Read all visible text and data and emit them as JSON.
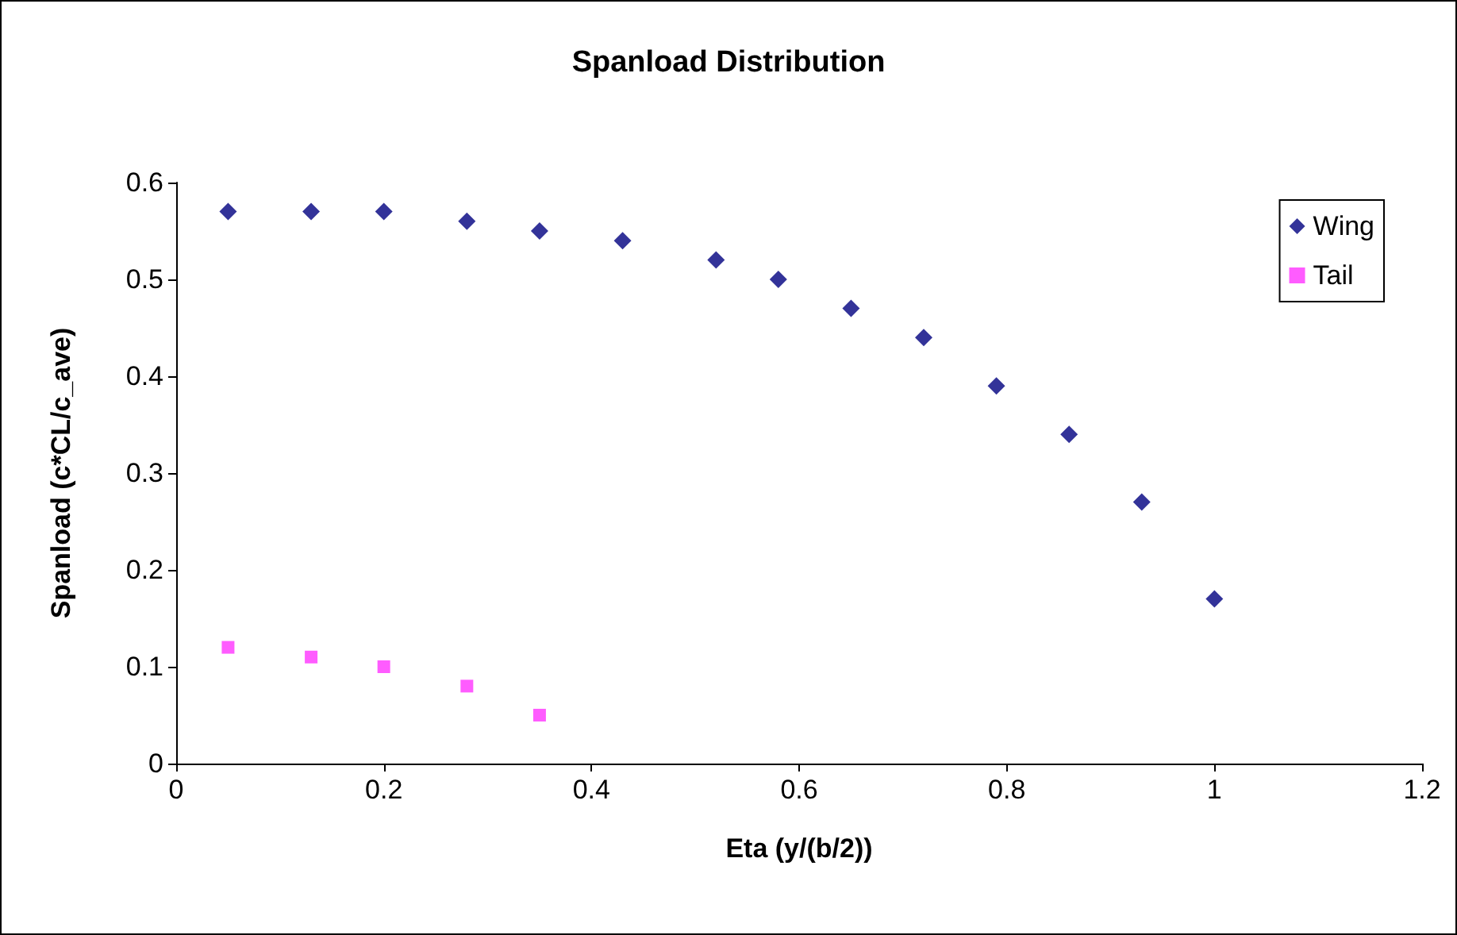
{
  "chart_data": {
    "type": "scatter",
    "title": "Spanload Distribution",
    "xlabel": "Eta (y/(b/2))",
    "ylabel": "Spanload (c*CL/c_ave)",
    "series": [
      {
        "name": "Wing",
        "color": "#000080",
        "marker": "diamond",
        "x": [
          0.05,
          0.13,
          0.2,
          0.28,
          0.35,
          0.43,
          0.52,
          0.58,
          0.65,
          0.72,
          0.79,
          0.86,
          0.93,
          1.0
        ],
        "values": [
          0.57,
          0.57,
          0.57,
          0.56,
          0.55,
          0.54,
          0.52,
          0.5,
          0.47,
          0.44,
          0.39,
          0.34,
          0.27,
          0.17
        ]
      },
      {
        "name": "Tail",
        "color": "#ff33ff",
        "marker": "square",
        "x": [
          0.05,
          0.13,
          0.2,
          0.28,
          0.35
        ],
        "values": [
          0.12,
          0.11,
          0.1,
          0.08,
          0.05
        ]
      }
    ],
    "xlim": [
      0,
      1.2
    ],
    "xticks": [
      0,
      0.2,
      0.4,
      0.6,
      0.8,
      1,
      1.2
    ],
    "ylim": [
      0,
      0.6
    ],
    "yticks": [
      0,
      0.1,
      0.2,
      0.3,
      0.4,
      0.5,
      0.6
    ],
    "grid": false,
    "legend": "top right"
  }
}
